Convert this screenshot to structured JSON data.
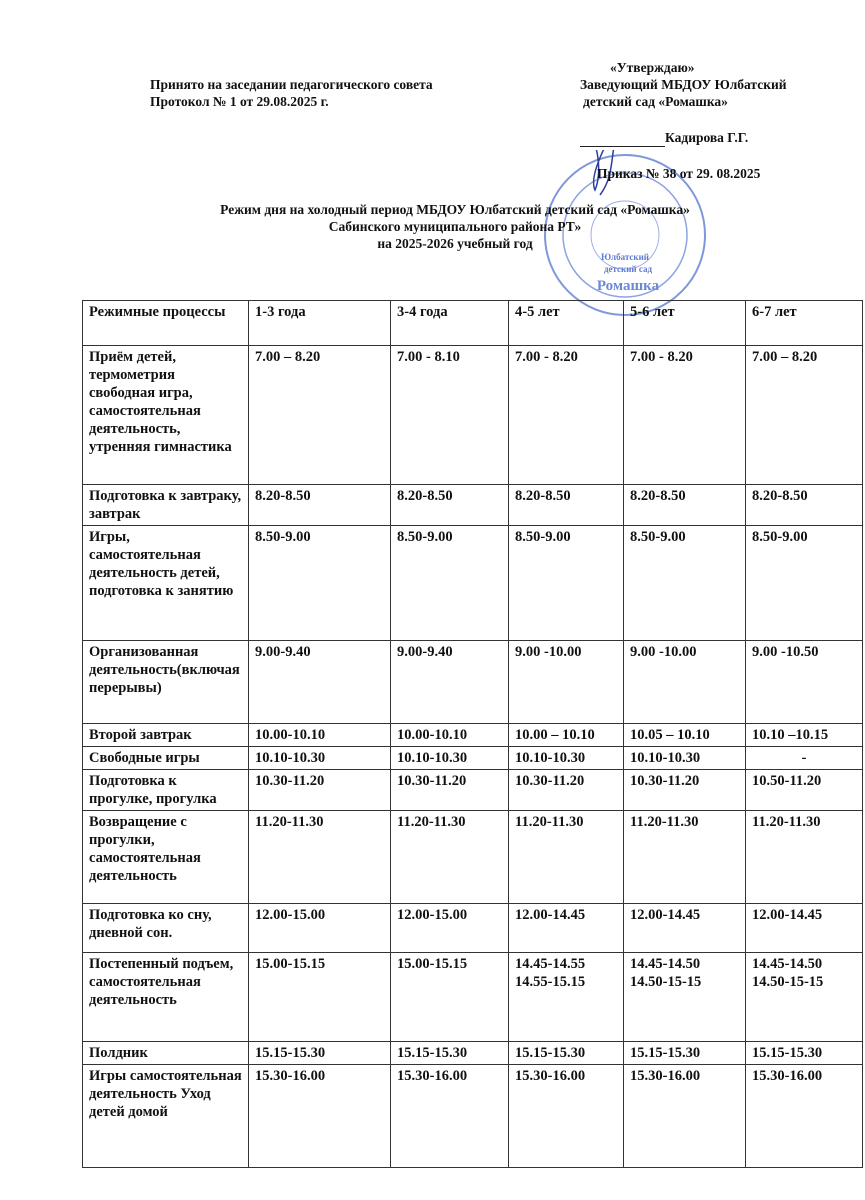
{
  "header": {
    "left": [
      "Принято на заседании педагогического совета",
      "Протокол № 1  от 29.08.2025 г."
    ],
    "approve": "«Утверждаю»",
    "position": [
      "Заведующий МБДОУ Юлбатский",
      "детский сад «Ромашка»"
    ],
    "signatory": "Кадирова Г.Г.",
    "order": "Приказ № 38   от 29. 08.2025",
    "stamp_text": [
      "Юлбатский",
      "детский сад",
      "Ромашка"
    ],
    "stamp_color": "#3a5fc8"
  },
  "title": [
    "Режим дня  на холодный период  МБДОУ Юлбатский детский сад «Ромашка»",
    "Сабинского муниципального района РТ»",
    "на 2025-2026 учебный год"
  ],
  "table": {
    "headers": [
      "Режимные процессы",
      "1-3 года",
      "3-4 года",
      "4-5 лет",
      "5-6 лет",
      "6-7 лет"
    ],
    "rows": [
      {
        "process": "Приём детей, термометрия свободная игра, самостоятельная деятельность, утренняя гимнастика",
        "times": [
          "7.00 – 8.20",
          "7.00 - 8.10",
          "7.00 - 8.20",
          "7.00 - 8.20",
          "7.00 – 8.20"
        ]
      },
      {
        "process": "Подготовка к завтраку, завтрак",
        "times": [
          "8.20-8.50",
          "8.20-8.50",
          "8.20-8.50",
          "8.20-8.50",
          "8.20-8.50"
        ]
      },
      {
        "process": "Игры, самостоятельная деятельность детей, подготовка к занятию",
        "times": [
          "8.50-9.00",
          "8.50-9.00",
          "8.50-9.00",
          "8.50-9.00",
          "8.50-9.00"
        ]
      },
      {
        "process": "Организованная деятельность(включая перерывы)",
        "times": [
          "9.00-9.40",
          "9.00-9.40",
          "9.00 -10.00",
          "9.00 -10.00",
          "9.00 -10.50"
        ]
      },
      {
        "process": "Второй завтрак",
        "times": [
          "10.00-10.10",
          "10.00-10.10",
          "10.00 – 10.10",
          "10.05 – 10.10",
          "10.10 –10.15"
        ]
      },
      {
        "process": "Свободные игры",
        "times": [
          "10.10-10.30",
          "10.10-10.30",
          "10.10-10.30",
          "10.10-10.30",
          "-"
        ]
      },
      {
        "process": "Подготовка к прогулке, прогулка",
        "times": [
          "10.30-11.20",
          "10.30-11.20",
          "10.30-11.20",
          "10.30-11.20",
          "10.50-11.20"
        ]
      },
      {
        "process": "Возвращение с прогулки, самостоятельная деятельность",
        "times": [
          "11.20-11.30",
          "11.20-11.30",
          "11.20-11.30",
          "11.20-11.30",
          "11.20-11.30"
        ]
      },
      {
        "process": "Подготовка ко сну, дневной сон.",
        "times": [
          "12.00-15.00",
          "12.00-15.00",
          "12.00-14.45",
          "12.00-14.45",
          "12.00-14.45"
        ]
      },
      {
        "process": "Постепенный подъем, самостоятельная деятельность",
        "times": [
          "15.00-15.15",
          "15.00-15.15",
          "14.45-14.55\n14.55-15.15",
          "14.45-14.50\n14.50-15-15",
          "14.45-14.50\n14.50-15-15"
        ]
      },
      {
        "process": "Полдник",
        "times": [
          "15.15-15.30",
          "15.15-15.30",
          "15.15-15.30",
          "15.15-15.30",
          "15.15-15.30"
        ]
      },
      {
        "process": "Игры самостоятельная деятельность Уход детей домой",
        "times": [
          "15.30-16.00",
          "15.30-16.00",
          "15.30-16.00",
          "15.30-16.00",
          "15.30-16.00"
        ]
      }
    ]
  }
}
